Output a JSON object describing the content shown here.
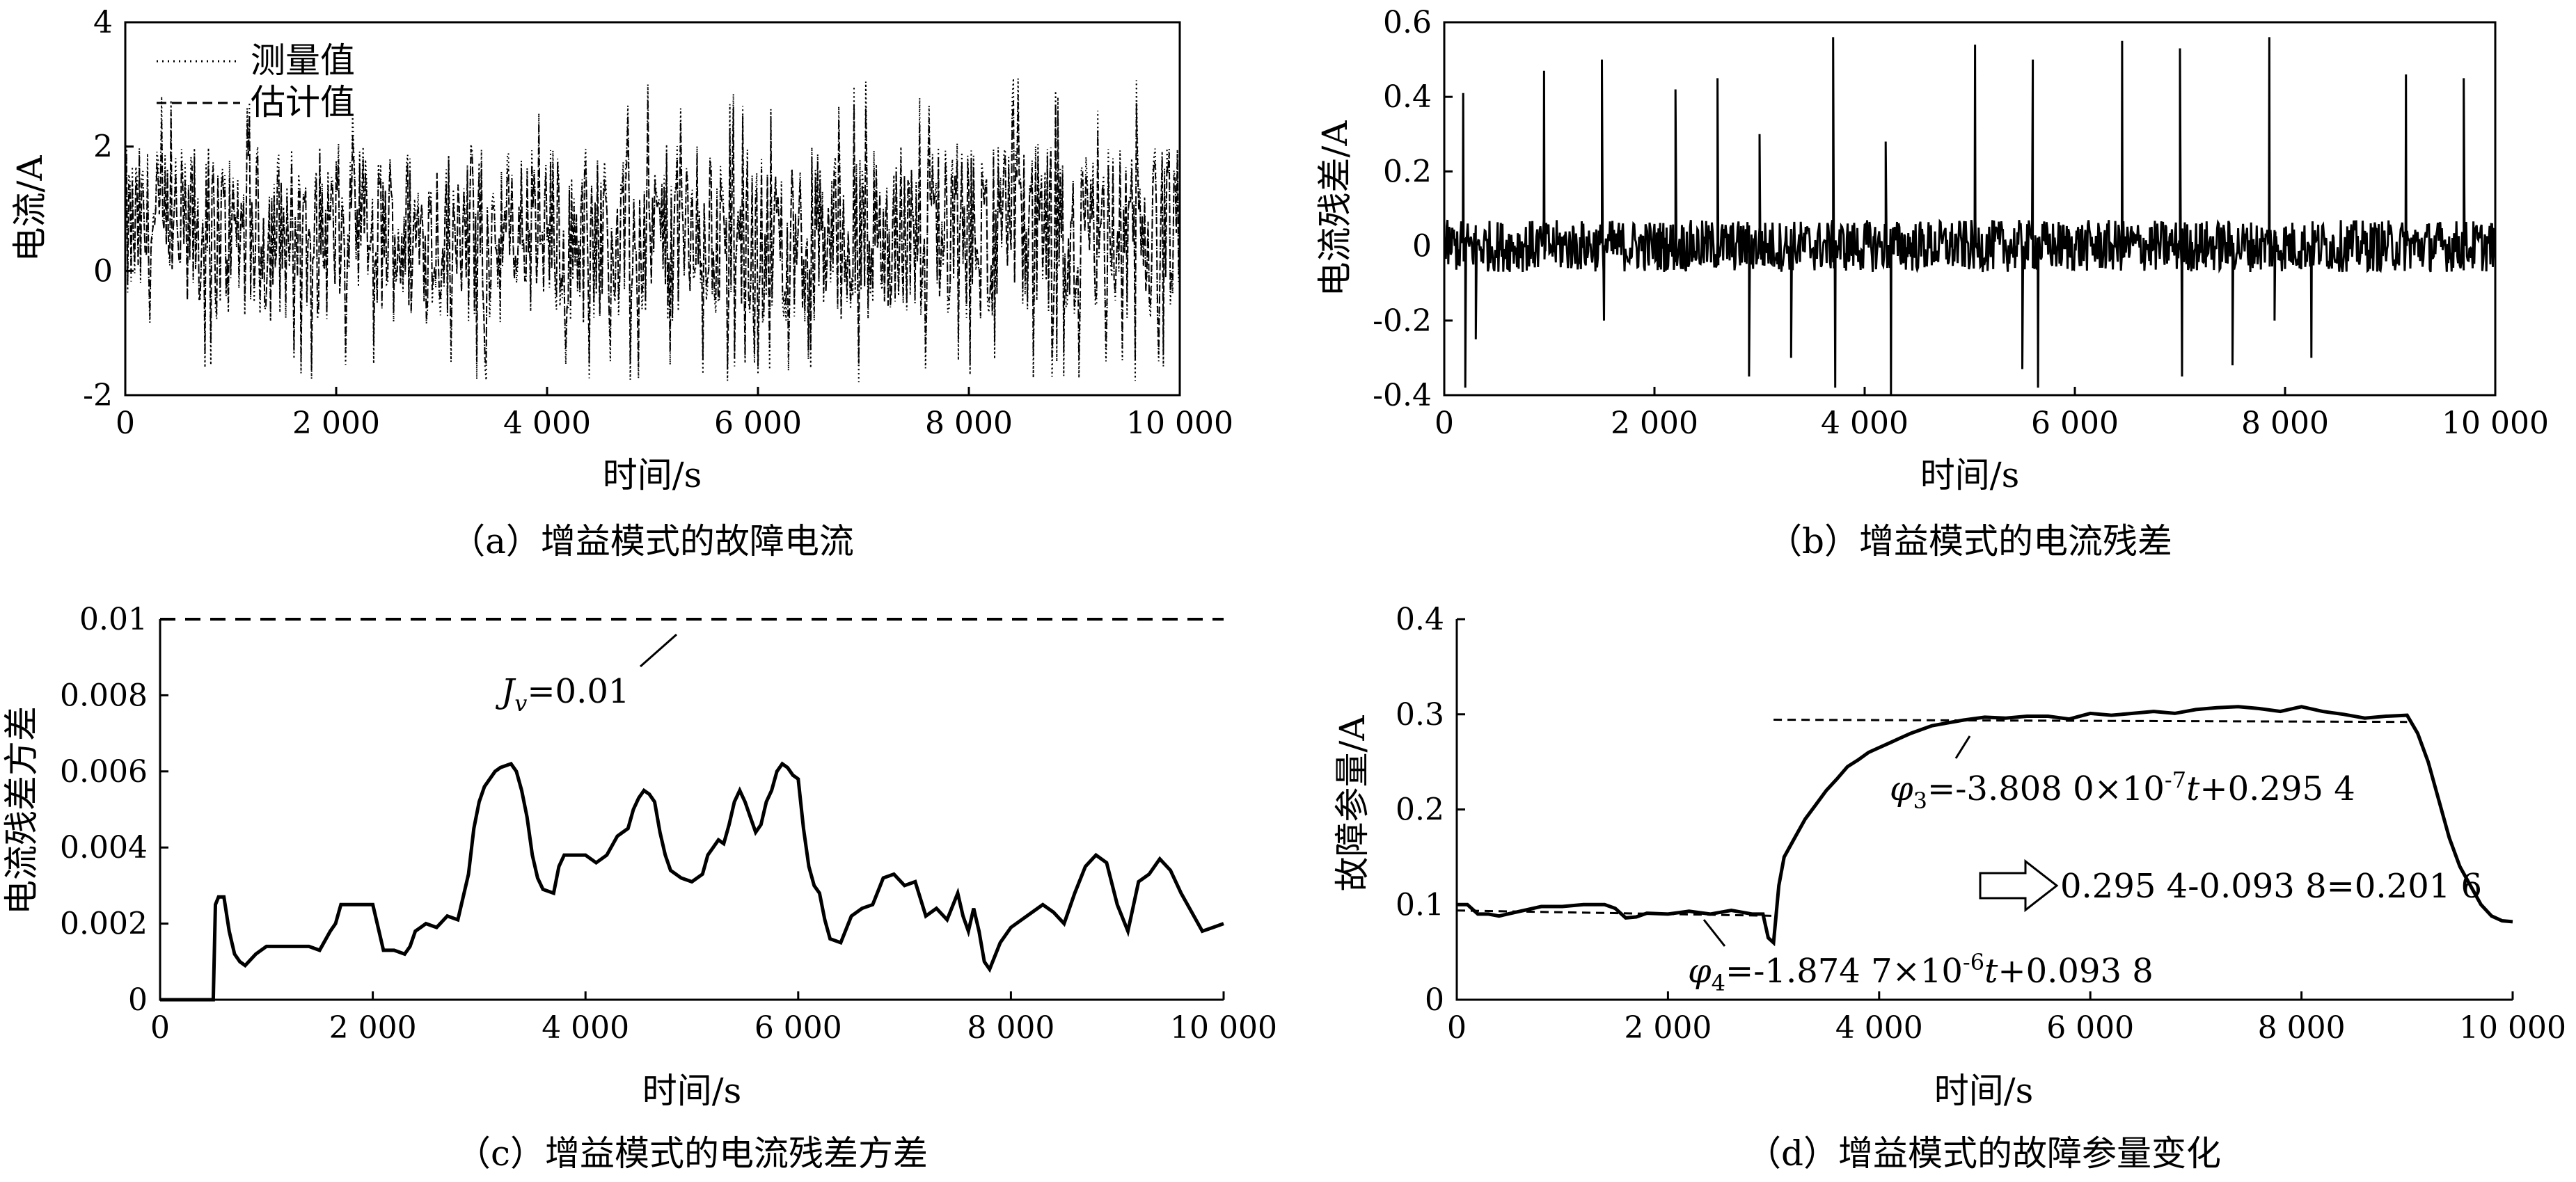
{
  "chart_data": [
    {
      "type": "line",
      "caption": "（a）增益模式的故障电流",
      "xlabel": "时间/s",
      "ylabel": "电流/A",
      "xlim": [
        0,
        10000
      ],
      "ylim": [
        -2,
        4
      ],
      "xticks": [
        0,
        2000,
        4000,
        6000,
        8000,
        10000
      ],
      "xtick_labels": [
        "0",
        "2 000",
        "4 000",
        "6 000",
        "8 000",
        "10 000"
      ],
      "yticks": [
        -2,
        0,
        2,
        4
      ],
      "ytick_labels": [
        "-2",
        "0",
        "2",
        "4"
      ],
      "legend_position": "top-left",
      "series": [
        {
          "name": "测量值",
          "style": "dotted",
          "description_range": [
            -1.8,
            3.1
          ],
          "center": 0.6
        },
        {
          "name": "估计值",
          "style": "dashed",
          "description_range": [
            -1.5,
            2.6
          ],
          "center": 0.6
        }
      ],
      "grid": false
    },
    {
      "type": "line",
      "caption": "（b）增益模式的电流残差",
      "xlabel": "时间/s",
      "ylabel": "电流残差/A",
      "xlim": [
        0,
        10000
      ],
      "ylim": [
        -0.4,
        0.6
      ],
      "xticks": [
        0,
        2000,
        4000,
        6000,
        8000,
        10000
      ],
      "xtick_labels": [
        "0",
        "2 000",
        "4 000",
        "6 000",
        "8 000",
        "10 000"
      ],
      "yticks": [
        -0.4,
        -0.2,
        0,
        0.2,
        0.4,
        0.6
      ],
      "ytick_labels": [
        "-0.4",
        "-0.2",
        "0",
        "0.2",
        "0.4",
        "0.6"
      ],
      "series": [
        {
          "style": "solid",
          "baseline": 0,
          "spikes": [
            [
              180,
              0.41
            ],
            [
              200,
              -0.38
            ],
            [
              300,
              -0.25
            ],
            [
              950,
              0.47
            ],
            [
              1500,
              0.5
            ],
            [
              1520,
              -0.2
            ],
            [
              2200,
              0.42
            ],
            [
              2600,
              0.45
            ],
            [
              2900,
              -0.35
            ],
            [
              3000,
              0.3
            ],
            [
              3300,
              -0.3
            ],
            [
              3700,
              0.56
            ],
            [
              3720,
              -0.38
            ],
            [
              4200,
              0.28
            ],
            [
              4250,
              -0.4
            ],
            [
              5050,
              0.54
            ],
            [
              5500,
              -0.33
            ],
            [
              5600,
              0.5
            ],
            [
              5650,
              -0.38
            ],
            [
              6450,
              0.55
            ],
            [
              7000,
              0.53
            ],
            [
              7020,
              -0.35
            ],
            [
              7500,
              -0.32
            ],
            [
              7850,
              0.56
            ],
            [
              7900,
              -0.2
            ],
            [
              8250,
              -0.3
            ],
            [
              9150,
              0.46
            ],
            [
              9700,
              0.45
            ]
          ]
        }
      ],
      "grid": false
    },
    {
      "type": "line",
      "caption": "（c）增益模式的电流残差方差",
      "xlabel": "时间/s",
      "ylabel": "电流残差方差",
      "xlim": [
        0,
        10000
      ],
      "ylim": [
        0,
        0.01
      ],
      "xticks": [
        0,
        2000,
        4000,
        6000,
        8000,
        10000
      ],
      "xtick_labels": [
        "0",
        "2 000",
        "4 000",
        "6 000",
        "8 000",
        "10 000"
      ],
      "yticks": [
        0,
        0.002,
        0.004,
        0.006,
        0.008,
        0.01
      ],
      "ytick_labels": [
        "0",
        "0.002",
        "0.004",
        "0.006",
        "0.008",
        "0.01"
      ],
      "series": [
        {
          "style": "solid",
          "x": [
            0,
            500,
            520,
            550,
            600,
            650,
            700,
            750,
            800,
            900,
            1000,
            1200,
            1400,
            1500,
            1600,
            1650,
            1700,
            1750,
            1800,
            1900,
            2000,
            2100,
            2200,
            2300,
            2350,
            2400,
            2450,
            2500,
            2600,
            2700,
            2800,
            2900,
            2950,
            3000,
            3050,
            3100,
            3150,
            3200,
            3300,
            3350,
            3400,
            3450,
            3500,
            3550,
            3600,
            3700,
            3750,
            3800,
            3900,
            4000,
            4100,
            4200,
            4300,
            4400,
            4450,
            4500,
            4550,
            4600,
            4650,
            4700,
            4750,
            4800,
            4900,
            5000,
            5100,
            5150,
            5200,
            5250,
            5300,
            5350,
            5400,
            5450,
            5500,
            5550,
            5600,
            5650,
            5700,
            5750,
            5800,
            5850,
            5900,
            5950,
            6000,
            6050,
            6100,
            6150,
            6200,
            6250,
            6300,
            6400,
            6500,
            6600,
            6700,
            6800,
            6900,
            7000,
            7100,
            7200,
            7300,
            7400,
            7500,
            7550,
            7600,
            7650,
            7700,
            7750,
            7800,
            7900,
            8000,
            8100,
            8200,
            8300,
            8400,
            8500,
            8600,
            8700,
            8800,
            8900,
            9000,
            9100,
            9200,
            9300,
            9400,
            9500,
            9600,
            9700,
            9800,
            9900,
            10000
          ],
          "y": [
            0,
            0,
            0.0025,
            0.0027,
            0.0027,
            0.0018,
            0.0012,
            0.001,
            0.0009,
            0.0012,
            0.0014,
            0.0014,
            0.0014,
            0.0013,
            0.0018,
            0.002,
            0.0025,
            0.0025,
            0.0025,
            0.0025,
            0.0025,
            0.0013,
            0.0013,
            0.0012,
            0.0014,
            0.0018,
            0.0019,
            0.002,
            0.0019,
            0.0022,
            0.0021,
            0.0033,
            0.0045,
            0.0052,
            0.0056,
            0.0058,
            0.006,
            0.0061,
            0.0062,
            0.006,
            0.0055,
            0.0048,
            0.0038,
            0.0032,
            0.0029,
            0.0028,
            0.0035,
            0.0038,
            0.0038,
            0.0038,
            0.0036,
            0.0038,
            0.0043,
            0.0045,
            0.005,
            0.0053,
            0.0055,
            0.0054,
            0.0052,
            0.0044,
            0.0038,
            0.0034,
            0.0032,
            0.0031,
            0.0033,
            0.0038,
            0.004,
            0.0042,
            0.0041,
            0.0046,
            0.0052,
            0.0055,
            0.0052,
            0.0048,
            0.0044,
            0.0046,
            0.0052,
            0.0055,
            0.006,
            0.0062,
            0.0061,
            0.0059,
            0.0058,
            0.0045,
            0.0035,
            0.003,
            0.0028,
            0.0021,
            0.0016,
            0.0015,
            0.0022,
            0.0024,
            0.0025,
            0.0032,
            0.0033,
            0.003,
            0.0031,
            0.0022,
            0.0024,
            0.0021,
            0.0028,
            0.0022,
            0.0018,
            0.0024,
            0.0018,
            0.001,
            0.0008,
            0.0015,
            0.0019,
            0.0021,
            0.0023,
            0.0025,
            0.0023,
            0.002,
            0.0028,
            0.0035,
            0.0038,
            0.0036,
            0.0025,
            0.0018,
            0.0031,
            0.0033,
            0.0037,
            0.0034,
            0.0028,
            0.0023,
            0.0018,
            0.0019,
            0.002
          ]
        },
        {
          "name": "J_v=0.01",
          "style": "dashed",
          "y_const": 0.01
        }
      ],
      "annotations": [
        {
          "text_main": "J",
          "text_sub": "v",
          "text_rest": "=0.01",
          "x": 4000,
          "y": 0.0081
        }
      ],
      "grid": false
    },
    {
      "type": "line",
      "caption": "（d）增益模式的故障参量变化",
      "xlabel": "时间/s",
      "ylabel": "故障参量/A",
      "xlim": [
        0,
        10000
      ],
      "ylim": [
        0,
        0.4
      ],
      "xticks": [
        0,
        2000,
        4000,
        6000,
        8000,
        10000
      ],
      "xtick_labels": [
        "0",
        "2 000",
        "4 000",
        "6 000",
        "8 000",
        "10 000"
      ],
      "yticks": [
        0,
        0.1,
        0.2,
        0.3,
        0.4
      ],
      "ytick_labels": [
        "0",
        "0.1",
        "0.2",
        "0.3",
        "0.4"
      ],
      "series": [
        {
          "style": "solid",
          "x": [
            0,
            100,
            200,
            300,
            400,
            600,
            800,
            1000,
            1200,
            1400,
            1500,
            1600,
            1700,
            1800,
            2000,
            2200,
            2400,
            2600,
            2800,
            2900,
            2950,
            3000,
            3050,
            3100,
            3200,
            3300,
            3400,
            3500,
            3600,
            3700,
            3800,
            3900,
            4000,
            4100,
            4200,
            4300,
            4400,
            4500,
            4600,
            4800,
            5000,
            5200,
            5400,
            5600,
            5800,
            6000,
            6200,
            6400,
            6600,
            6800,
            7000,
            7200,
            7400,
            7600,
            7800,
            8000,
            8200,
            8400,
            8600,
            8800,
            9000,
            9100,
            9200,
            9300,
            9400,
            9500,
            9600,
            9700,
            9800,
            9900,
            10000
          ],
          "y": [
            0.1,
            0.1,
            0.09,
            0.09,
            0.088,
            0.093,
            0.098,
            0.098,
            0.1,
            0.1,
            0.096,
            0.086,
            0.087,
            0.091,
            0.09,
            0.093,
            0.09,
            0.094,
            0.09,
            0.09,
            0.065,
            0.06,
            0.12,
            0.15,
            0.17,
            0.19,
            0.205,
            0.22,
            0.232,
            0.245,
            0.252,
            0.26,
            0.265,
            0.27,
            0.275,
            0.28,
            0.284,
            0.288,
            0.29,
            0.294,
            0.297,
            0.296,
            0.298,
            0.298,
            0.295,
            0.301,
            0.299,
            0.301,
            0.303,
            0.301,
            0.305,
            0.307,
            0.308,
            0.306,
            0.303,
            0.308,
            0.303,
            0.3,
            0.296,
            0.298,
            0.299,
            0.28,
            0.25,
            0.21,
            0.17,
            0.14,
            0.12,
            0.1,
            0.088,
            0.083,
            0.082
          ]
        },
        {
          "name": "φ4 fit",
          "style": "dashed",
          "x": [
            0,
            3000
          ],
          "y": [
            0.0938,
            0.0882
          ]
        },
        {
          "name": "φ3 fit",
          "style": "dashed",
          "x": [
            3000,
            9000
          ],
          "y": [
            0.2943,
            0.292
          ]
        }
      ],
      "annotations": [
        {
          "symbol": "φ",
          "sub": "3",
          "text": "=-3.808 0×10",
          "sup": "-7",
          "tvar": "t",
          "rest": "+0.295 4"
        },
        {
          "symbol": "φ",
          "sub": "4",
          "text": "=-1.874 7×10",
          "sup": "-6",
          "tvar": "t",
          "rest": "+0.093 8"
        },
        {
          "arrow_text": "0.295 4-0.093 8=0.201 6"
        }
      ],
      "grid": false
    }
  ]
}
